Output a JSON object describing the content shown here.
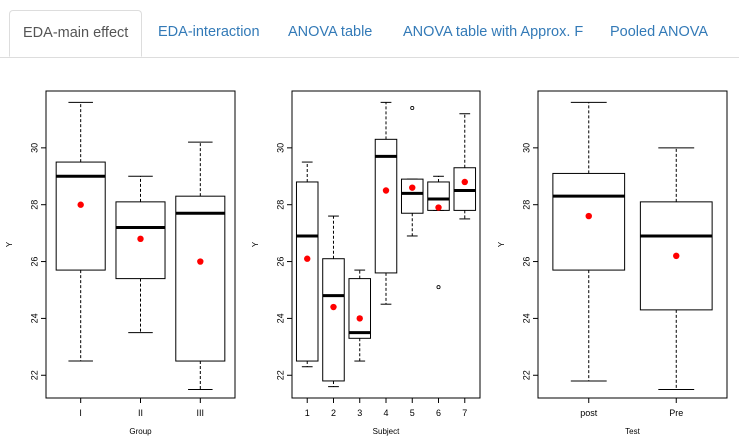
{
  "tabs": [
    {
      "label": "EDA-main effect",
      "active": true
    },
    {
      "label": "EDA-interaction",
      "active": false
    },
    {
      "label": "ANOVA table",
      "active": false
    },
    {
      "label": "ANOVA table with Approx. F",
      "active": false
    },
    {
      "label": "Pooled ANOVA",
      "active": false
    }
  ],
  "colors": {
    "tab_link": "#337ab7",
    "mean_point": "#ff0000"
  },
  "chart_data": [
    {
      "type": "boxplot",
      "xlabel": "Group",
      "ylabel": "Y",
      "ylim": [
        21.2,
        32.0
      ],
      "yticks": [
        22,
        24,
        26,
        28,
        30
      ],
      "categories": [
        "I",
        "II",
        "III"
      ],
      "boxes": [
        {
          "min": 22.5,
          "q1": 25.7,
          "median": 29.0,
          "q3": 29.5,
          "max": 31.6,
          "mean": 28.0,
          "outliers": []
        },
        {
          "min": 23.5,
          "q1": 25.4,
          "median": 27.2,
          "q3": 28.1,
          "max": 29.0,
          "mean": 26.8,
          "outliers": []
        },
        {
          "min": 21.5,
          "q1": 22.5,
          "median": 27.7,
          "q3": 28.3,
          "max": 30.2,
          "mean": 26.0,
          "outliers": []
        }
      ]
    },
    {
      "type": "boxplot",
      "xlabel": "Subject",
      "ylabel": "Y",
      "ylim": [
        21.2,
        32.0
      ],
      "yticks": [
        22,
        24,
        26,
        28,
        30
      ],
      "categories": [
        "1",
        "2",
        "3",
        "4",
        "5",
        "6",
        "7"
      ],
      "boxes": [
        {
          "min": 22.3,
          "q1": 22.5,
          "median": 26.9,
          "q3": 28.8,
          "max": 29.5,
          "mean": 26.1,
          "outliers": []
        },
        {
          "min": 21.6,
          "q1": 21.8,
          "median": 24.8,
          "q3": 26.1,
          "max": 27.6,
          "mean": 24.4,
          "outliers": []
        },
        {
          "min": 22.5,
          "q1": 23.3,
          "median": 23.5,
          "q3": 25.4,
          "max": 25.7,
          "mean": 24.0,
          "outliers": []
        },
        {
          "min": 24.5,
          "q1": 25.6,
          "median": 29.7,
          "q3": 30.3,
          "max": 31.6,
          "mean": 28.5,
          "outliers": []
        },
        {
          "min": 26.9,
          "q1": 27.7,
          "median": 28.4,
          "q3": 28.9,
          "max": 28.9,
          "mean": 28.6,
          "outliers": [
            31.4
          ]
        },
        {
          "min": 27.8,
          "q1": 27.8,
          "median": 28.2,
          "q3": 28.8,
          "max": 29.0,
          "mean": 27.9,
          "outliers": [
            25.1
          ]
        },
        {
          "min": 27.5,
          "q1": 27.8,
          "median": 28.5,
          "q3": 29.3,
          "max": 31.2,
          "mean": 28.8,
          "outliers": []
        }
      ]
    },
    {
      "type": "boxplot",
      "xlabel": "Test",
      "ylabel": "Y",
      "ylim": [
        21.2,
        32.0
      ],
      "yticks": [
        22,
        24,
        26,
        28,
        30
      ],
      "categories": [
        "post",
        "Pre"
      ],
      "boxes": [
        {
          "min": 21.8,
          "q1": 25.7,
          "median": 28.3,
          "q3": 29.1,
          "max": 31.6,
          "mean": 27.6,
          "outliers": []
        },
        {
          "min": 21.5,
          "q1": 24.3,
          "median": 26.9,
          "q3": 28.1,
          "max": 30.0,
          "mean": 26.2,
          "outliers": []
        }
      ]
    }
  ]
}
